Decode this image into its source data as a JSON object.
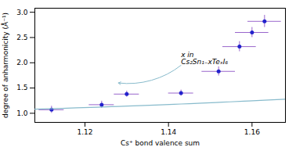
{
  "chart_data": {
    "type": "scatter",
    "xlabel": "Cs⁺ bond valence sum",
    "ylabel": "degree of anharmonicity (Å⁻¹)",
    "xlim": [
      1.108,
      1.168
    ],
    "ylim": [
      0.82,
      3.08
    ],
    "xticks": [
      1.12,
      1.14,
      1.16
    ],
    "yticks": [
      {
        "value": 1.0,
        "label": "1.0"
      },
      {
        "value": 1.5,
        "label": "1.5"
      },
      {
        "value": 2.0,
        "label": "2.0"
      },
      {
        "value": 2.5,
        "label": "2.5"
      },
      {
        "value": 3.0,
        "label": "3.0"
      }
    ],
    "series": [
      {
        "type": "scatter",
        "color": "#2222cc",
        "err_color": "#9966cc",
        "x": [
          1.112,
          1.124,
          1.13,
          1.143,
          1.152,
          1.157,
          1.16,
          1.163
        ],
        "values": [
          1.07,
          1.17,
          1.38,
          1.4,
          1.83,
          2.32,
          2.6,
          2.82
        ],
        "xerr": [
          0.003,
          0.003,
          0.003,
          0.003,
          0.004,
          0.004,
          0.004,
          0.004
        ],
        "yerr": [
          0.07,
          0.07,
          0.06,
          0.06,
          0.09,
          0.1,
          0.1,
          0.12
        ]
      },
      {
        "type": "line",
        "color": "#88bbcc",
        "x": [
          1.108,
          1.113,
          1.118,
          1.123,
          1.128,
          1.133,
          1.138,
          1.143,
          1.148,
          1.153,
          1.158,
          1.163,
          1.168
        ],
        "values": [
          1.08,
          1.093,
          1.107,
          1.121,
          1.136,
          1.151,
          1.167,
          1.184,
          1.201,
          1.22,
          1.239,
          1.259,
          1.28
        ]
      }
    ],
    "annotations": [
      {
        "text": "x in\nCs₂Sn₁₋xTeₓI₆",
        "x": 1.143,
        "y": 1.95,
        "arrow_x": 1.128,
        "arrow_y": 1.6,
        "color": "#88bbcc"
      }
    ]
  }
}
